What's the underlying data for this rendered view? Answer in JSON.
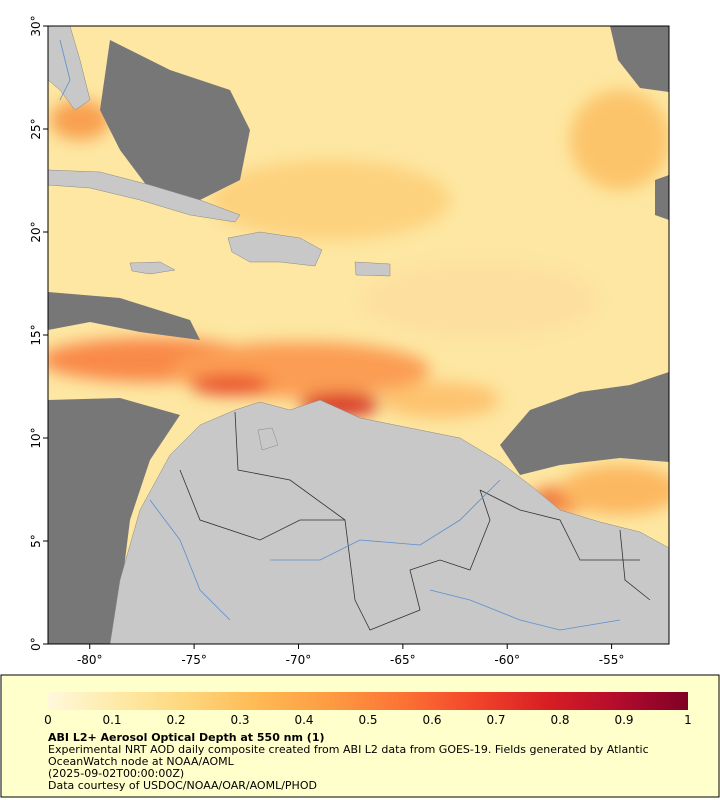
{
  "chart_data": {
    "type": "map",
    "xlim": [
      -82,
      -52.25
    ],
    "ylim": [
      0,
      30
    ],
    "xticks": [
      {
        "value": -80,
        "label": "-80°"
      },
      {
        "value": -75,
        "label": "-75°"
      },
      {
        "value": -70,
        "label": "-70°"
      },
      {
        "value": -65,
        "label": "-65°"
      },
      {
        "value": -60,
        "label": "-60°"
      },
      {
        "value": -55,
        "label": "-55°"
      }
    ],
    "yticks": [
      {
        "value": 0,
        "label": "0°"
      },
      {
        "value": 5,
        "label": "5°"
      },
      {
        "value": 10,
        "label": "10°"
      },
      {
        "value": 15,
        "label": "15°"
      },
      {
        "value": 20,
        "label": "20°"
      },
      {
        "value": 25,
        "label": "25°"
      },
      {
        "value": 30,
        "label": "30°"
      }
    ],
    "colorbar": {
      "range": [
        0,
        1
      ],
      "ticks": [
        0,
        0.1,
        0.2,
        0.3,
        0.4,
        0.5,
        0.6,
        0.7,
        0.8,
        0.9,
        1
      ],
      "colors": [
        "#fff8dc",
        "#feeaa6",
        "#fed57a",
        "#feb852",
        "#fd9a42",
        "#fc7234",
        "#f2452a",
        "#d91e24",
        "#b40c2c",
        "#800026"
      ]
    },
    "title": "ABI L2+ Aerosol Optical Depth at 550 nm (1)",
    "description": "Experimental NRT AOD daily composite created from ABI L2 data from GOES-19. Fields generated by Atlantic OceanWatch node at NOAA/AOML",
    "date": "(2025-09-02T00:00:00Z)",
    "credit": "Data courtesy of USDOC/NOAA/OAR/AOML/PHOD"
  }
}
